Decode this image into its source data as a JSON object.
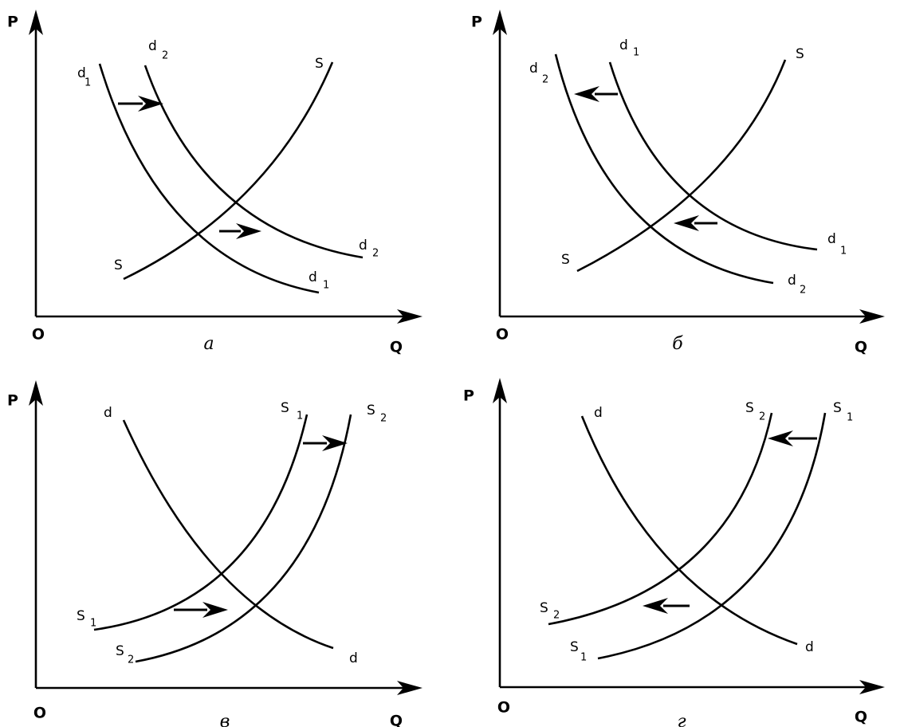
{
  "panels": [
    {
      "caption": "а",
      "y_axis": "P",
      "x_axis": "Q",
      "origin": "O",
      "labels": [
        {
          "text": "d",
          "sub": "1"
        },
        {
          "text": "d",
          "sub": "2"
        },
        {
          "text": "S"
        },
        {
          "text": "S"
        },
        {
          "text": "d",
          "sub": "2"
        },
        {
          "text": "d",
          "sub": "1"
        }
      ]
    },
    {
      "caption": "б",
      "y_axis": "P",
      "x_axis": "Q",
      "origin": "O",
      "labels": [
        {
          "text": "d",
          "sub": "1"
        },
        {
          "text": "d",
          "sub": "2"
        },
        {
          "text": "S"
        },
        {
          "text": "S"
        },
        {
          "text": "d",
          "sub": "1"
        },
        {
          "text": "d",
          "sub": "2"
        }
      ]
    },
    {
      "caption": "в",
      "y_axis": "P",
      "x_axis": "Q",
      "origin": "O",
      "labels": [
        {
          "text": "d"
        },
        {
          "text": "S",
          "sub": "1"
        },
        {
          "text": "S",
          "sub": "2"
        },
        {
          "text": "S",
          "sub": "1"
        },
        {
          "text": "S",
          "sub": "2"
        },
        {
          "text": "d"
        }
      ]
    },
    {
      "caption": "г",
      "y_axis": "P",
      "x_axis": "Q",
      "origin": "O",
      "labels": [
        {
          "text": "d"
        },
        {
          "text": "S",
          "sub": "2"
        },
        {
          "text": "S",
          "sub": "1"
        },
        {
          "text": "S",
          "sub": "2"
        },
        {
          "text": "S",
          "sub": "1"
        },
        {
          "text": "d"
        }
      ]
    }
  ]
}
